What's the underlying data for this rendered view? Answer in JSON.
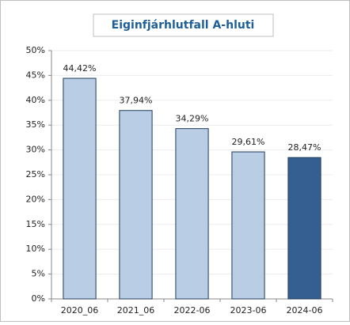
{
  "chart_data": {
    "type": "bar",
    "title": "Eiginfjárhlutfall A-hluti",
    "categories": [
      "2020_06",
      "2021_06",
      "2022-06",
      "2023-06",
      "2024-06"
    ],
    "values": [
      44.42,
      37.94,
      34.29,
      29.61,
      28.47
    ],
    "value_labels": [
      "44,42%",
      "37,94%",
      "34,29%",
      "29,61%",
      "28,47%"
    ],
    "colors": [
      "#b9cde5",
      "#b9cde5",
      "#b9cde5",
      "#b9cde5",
      "#365f91"
    ],
    "ylim": [
      0,
      50
    ],
    "yticks": [
      {
        "value": 0,
        "label": "0%"
      },
      {
        "value": 5,
        "label": "5%"
      },
      {
        "value": 10,
        "label": "10%"
      },
      {
        "value": 15,
        "label": "15%"
      },
      {
        "value": 20,
        "label": "20%"
      },
      {
        "value": 25,
        "label": "25%"
      },
      {
        "value": 30,
        "label": "30%"
      },
      {
        "value": 35,
        "label": "35%"
      },
      {
        "value": 40,
        "label": "40%"
      },
      {
        "value": 45,
        "label": "45%"
      },
      {
        "value": 50,
        "label": "50%"
      }
    ],
    "grid": true
  }
}
